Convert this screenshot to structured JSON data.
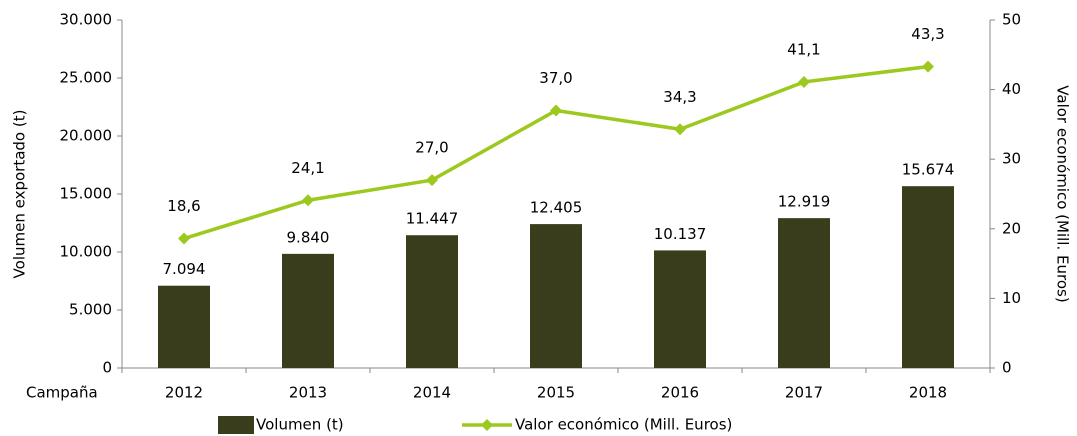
{
  "chart_data": {
    "type": "bar",
    "xlabel": "Campaña",
    "ylabel": "Volumen exportado (t)",
    "y2label": "Valor económico (Mill. Euros)",
    "categories": [
      "2012",
      "2013",
      "2014",
      "2015",
      "2016",
      "2017",
      "2018"
    ],
    "series": [
      {
        "name": "Volumen (t)",
        "type": "bar",
        "color": "#393d1c",
        "values": [
          7094,
          9840,
          11447,
          12405,
          10137,
          12919,
          15674
        ],
        "value_labels": [
          "7.094",
          "9.840",
          "11.447",
          "12.405",
          "10.137",
          "12.919",
          "15.674"
        ]
      },
      {
        "name": "Valor económico (Mill. Euros)",
        "type": "line",
        "axis": "y2",
        "color": "#9dc81e",
        "values": [
          18.6,
          24.1,
          27.0,
          37.0,
          34.3,
          41.1,
          43.3
        ],
        "value_labels": [
          "18,6",
          "24,1",
          "27,0",
          "37,0",
          "34,3",
          "41,1",
          "43,3"
        ]
      }
    ],
    "ylim": [
      0,
      30000
    ],
    "yticks": [
      0,
      {
        "value": 5000,
        "label": "5.000"
      },
      {
        "value": 10000,
        "label": "10.000"
      },
      {
        "value": 15000,
        "label": "15.000"
      },
      {
        "value": 20000,
        "label": "20.000"
      },
      {
        "value": 25000,
        "label": "25.000"
      },
      {
        "value": 30000,
        "label": "30.000"
      }
    ],
    "y2lim": [
      0,
      50
    ],
    "y2ticks": [
      0,
      10,
      20,
      30,
      40,
      50
    ],
    "legend": "bottom"
  }
}
